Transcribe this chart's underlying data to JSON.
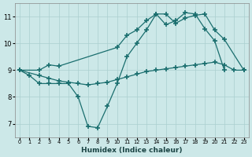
{
  "xlabel": "Humidex (Indice chaleur)",
  "bg_color": "#cce8e8",
  "grid_color": "#aacfcf",
  "line_color": "#1a6e6e",
  "x_min": -0.5,
  "x_max": 23.5,
  "y_min": 6.5,
  "y_max": 11.5,
  "yticks": [
    7,
    8,
    9,
    10,
    11
  ],
  "xticks": [
    0,
    1,
    2,
    3,
    4,
    5,
    6,
    7,
    8,
    9,
    10,
    11,
    12,
    13,
    14,
    15,
    16,
    17,
    18,
    19,
    20,
    21,
    22,
    23
  ],
  "line1_x": [
    0,
    2,
    3,
    4,
    10,
    11,
    12,
    13,
    14,
    15,
    16,
    17,
    18,
    19,
    20,
    21,
    23
  ],
  "line1_y": [
    9.0,
    9.0,
    9.2,
    9.15,
    9.85,
    10.3,
    10.5,
    10.85,
    11.1,
    11.1,
    10.75,
    10.95,
    11.05,
    11.1,
    10.5,
    10.15,
    9.0
  ],
  "line2_x": [
    0,
    1,
    2,
    3,
    4,
    5,
    6,
    7,
    8,
    9,
    10,
    11,
    12,
    13,
    14,
    15,
    16,
    17,
    18,
    19,
    20,
    21
  ],
  "line2_y": [
    9.0,
    8.8,
    8.5,
    8.5,
    8.5,
    8.5,
    8.0,
    6.9,
    6.85,
    7.65,
    8.5,
    9.5,
    10.0,
    10.5,
    11.1,
    10.7,
    10.85,
    11.15,
    11.1,
    10.55,
    10.1,
    9.0
  ],
  "line3_x": [
    0,
    2,
    3,
    4,
    5,
    6,
    7,
    8,
    9,
    10,
    11,
    12,
    13,
    14,
    15,
    16,
    17,
    18,
    19,
    20,
    21,
    22,
    23
  ],
  "line3_y": [
    9.0,
    8.8,
    8.7,
    8.6,
    8.55,
    8.5,
    8.45,
    8.5,
    8.55,
    8.65,
    8.75,
    8.85,
    8.95,
    9.0,
    9.05,
    9.1,
    9.15,
    9.2,
    9.25,
    9.3,
    9.2,
    9.0,
    9.0
  ]
}
